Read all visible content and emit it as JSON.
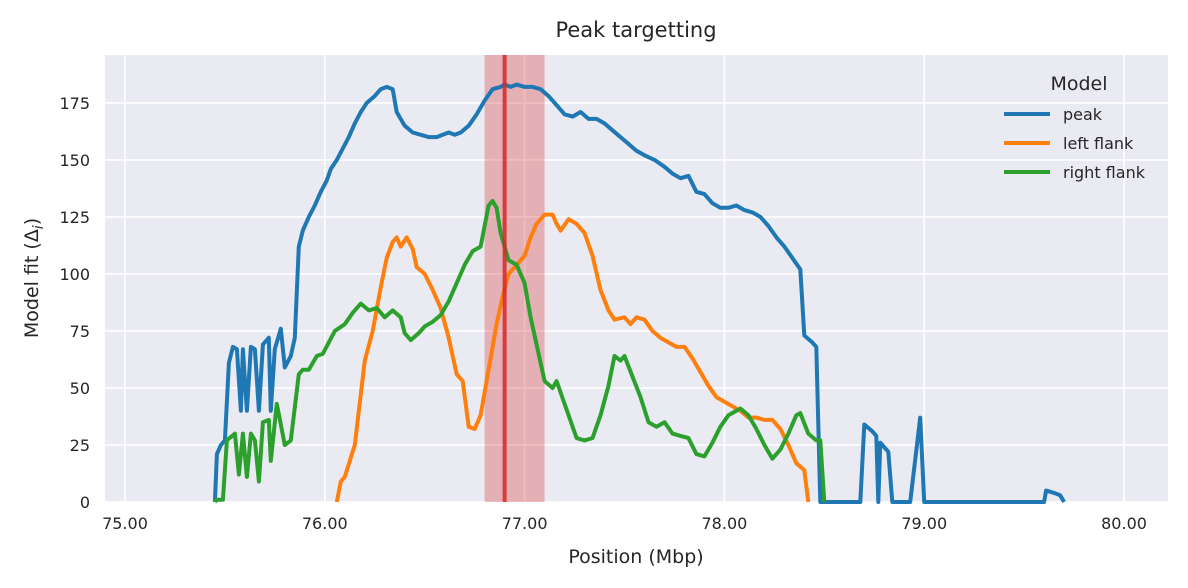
{
  "chart_data": {
    "type": "line",
    "title": "Peak targetting",
    "xlabel": "Position (Mbp)",
    "ylabel": "Model fit (Δ",
    "ylabel_sub": "i",
    "ylabel_close": ")",
    "xlim": [
      74.9,
      80.22
    ],
    "ylim": [
      0,
      196
    ],
    "xticks": [
      75,
      76,
      77,
      78,
      79,
      80
    ],
    "xtick_labels": [
      "75.00",
      "76.00",
      "77.00",
      "78.00",
      "79.00",
      "80.00"
    ],
    "yticks": [
      0,
      25,
      50,
      75,
      100,
      125,
      150,
      175
    ],
    "ytick_labels": [
      "0",
      "25",
      "50",
      "75",
      "100",
      "125",
      "150",
      "175"
    ],
    "grid": true,
    "background": "#eaeaf2",
    "legend": {
      "title": "Model",
      "placement": "top-right"
    },
    "highlight_line": {
      "x": 76.9,
      "color": "#d62728"
    },
    "highlight_band": {
      "x0": 76.8,
      "x1": 77.1,
      "color": "#d62728"
    },
    "series": [
      {
        "name": "peak",
        "color": "#1f77b4",
        "points": [
          [
            75.45,
            0
          ],
          [
            75.46,
            21
          ],
          [
            75.48,
            25
          ],
          [
            75.5,
            27
          ],
          [
            75.52,
            61
          ],
          [
            75.54,
            68
          ],
          [
            75.56,
            67
          ],
          [
            75.58,
            40
          ],
          [
            75.59,
            67
          ],
          [
            75.61,
            40
          ],
          [
            75.63,
            68
          ],
          [
            75.65,
            67
          ],
          [
            75.67,
            40
          ],
          [
            75.69,
            69
          ],
          [
            75.72,
            72
          ],
          [
            75.73,
            40
          ],
          [
            75.75,
            67
          ],
          [
            75.78,
            76
          ],
          [
            75.8,
            59
          ],
          [
            75.83,
            64
          ],
          [
            75.85,
            72
          ],
          [
            75.87,
            112
          ],
          [
            75.89,
            119
          ],
          [
            75.92,
            125
          ],
          [
            75.95,
            130
          ],
          [
            75.98,
            136
          ],
          [
            76.01,
            141
          ],
          [
            76.03,
            146
          ],
          [
            76.06,
            150
          ],
          [
            76.09,
            155
          ],
          [
            76.12,
            160
          ],
          [
            76.15,
            166
          ],
          [
            76.18,
            171
          ],
          [
            76.21,
            175
          ],
          [
            76.25,
            178
          ],
          [
            76.28,
            181
          ],
          [
            76.31,
            182
          ],
          [
            76.34,
            181
          ],
          [
            76.36,
            171
          ],
          [
            76.4,
            165
          ],
          [
            76.44,
            162
          ],
          [
            76.48,
            161
          ],
          [
            76.52,
            160
          ],
          [
            76.56,
            160
          ],
          [
            76.59,
            161
          ],
          [
            76.62,
            162
          ],
          [
            76.65,
            161
          ],
          [
            76.68,
            162
          ],
          [
            76.72,
            165
          ],
          [
            76.76,
            170
          ],
          [
            76.8,
            176
          ],
          [
            76.84,
            181
          ],
          [
            76.88,
            182
          ],
          [
            76.9,
            183
          ],
          [
            76.93,
            182
          ],
          [
            76.96,
            183
          ],
          [
            77.0,
            182
          ],
          [
            77.04,
            182
          ],
          [
            77.08,
            181
          ],
          [
            77.12,
            178
          ],
          [
            77.16,
            174
          ],
          [
            77.2,
            170
          ],
          [
            77.24,
            169
          ],
          [
            77.28,
            171
          ],
          [
            77.32,
            168
          ],
          [
            77.36,
            168
          ],
          [
            77.4,
            166
          ],
          [
            77.44,
            163
          ],
          [
            77.48,
            160
          ],
          [
            77.52,
            157
          ],
          [
            77.56,
            154
          ],
          [
            77.6,
            152
          ],
          [
            77.65,
            150
          ],
          [
            77.7,
            147
          ],
          [
            77.74,
            144
          ],
          [
            77.78,
            142
          ],
          [
            77.82,
            143
          ],
          [
            77.86,
            136
          ],
          [
            77.9,
            135
          ],
          [
            77.94,
            131
          ],
          [
            77.98,
            129
          ],
          [
            78.02,
            129
          ],
          [
            78.06,
            130
          ],
          [
            78.1,
            128
          ],
          [
            78.14,
            127
          ],
          [
            78.18,
            125
          ],
          [
            78.22,
            121
          ],
          [
            78.26,
            116
          ],
          [
            78.3,
            112
          ],
          [
            78.34,
            107
          ],
          [
            78.38,
            102
          ],
          [
            78.4,
            73
          ],
          [
            78.44,
            70
          ],
          [
            78.46,
            68
          ],
          [
            78.48,
            0
          ],
          [
            78.68,
            0
          ],
          [
            78.7,
            34
          ],
          [
            78.74,
            31
          ],
          [
            78.76,
            29
          ],
          [
            78.77,
            0
          ],
          [
            78.78,
            26
          ],
          [
            78.82,
            22
          ],
          [
            78.84,
            0
          ],
          [
            78.93,
            0
          ],
          [
            78.98,
            37
          ],
          [
            79.0,
            0
          ],
          [
            79.6,
            0
          ],
          [
            79.61,
            5
          ],
          [
            79.65,
            4
          ],
          [
            79.68,
            3
          ],
          [
            79.7,
            0
          ]
        ]
      },
      {
        "name": "left flank",
        "color": "#ff7f0e",
        "points": [
          [
            76.06,
            0
          ],
          [
            76.08,
            9
          ],
          [
            76.1,
            11
          ],
          [
            76.15,
            25
          ],
          [
            76.2,
            62
          ],
          [
            76.24,
            75
          ],
          [
            76.28,
            94
          ],
          [
            76.31,
            107
          ],
          [
            76.34,
            114
          ],
          [
            76.36,
            116
          ],
          [
            76.38,
            112
          ],
          [
            76.41,
            116
          ],
          [
            76.44,
            111
          ],
          [
            76.46,
            103
          ],
          [
            76.5,
            100
          ],
          [
            76.54,
            93
          ],
          [
            76.58,
            85
          ],
          [
            76.62,
            72
          ],
          [
            76.66,
            56
          ],
          [
            76.69,
            53
          ],
          [
            76.72,
            33
          ],
          [
            76.75,
            32
          ],
          [
            76.78,
            38
          ],
          [
            76.82,
            58
          ],
          [
            76.86,
            78
          ],
          [
            76.89,
            90
          ],
          [
            76.92,
            100
          ],
          [
            76.96,
            104
          ],
          [
            77.0,
            108
          ],
          [
            77.03,
            116
          ],
          [
            77.06,
            122
          ],
          [
            77.1,
            126
          ],
          [
            77.14,
            126
          ],
          [
            77.16,
            122
          ],
          [
            77.18,
            119
          ],
          [
            77.22,
            124
          ],
          [
            77.26,
            122
          ],
          [
            77.3,
            118
          ],
          [
            77.34,
            108
          ],
          [
            77.38,
            93
          ],
          [
            77.42,
            84
          ],
          [
            77.45,
            80
          ],
          [
            77.5,
            81
          ],
          [
            77.53,
            78
          ],
          [
            77.56,
            81
          ],
          [
            77.6,
            80
          ],
          [
            77.64,
            75
          ],
          [
            77.68,
            72
          ],
          [
            77.72,
            70
          ],
          [
            77.76,
            68
          ],
          [
            77.8,
            68
          ],
          [
            77.84,
            63
          ],
          [
            77.88,
            57
          ],
          [
            77.92,
            51
          ],
          [
            77.96,
            46
          ],
          [
            78.0,
            44
          ],
          [
            78.04,
            42
          ],
          [
            78.08,
            40
          ],
          [
            78.12,
            37
          ],
          [
            78.16,
            37
          ],
          [
            78.2,
            36
          ],
          [
            78.24,
            36
          ],
          [
            78.28,
            32
          ],
          [
            78.32,
            25
          ],
          [
            78.36,
            17
          ],
          [
            78.4,
            14
          ],
          [
            78.42,
            0
          ]
        ]
      },
      {
        "name": "right flank",
        "color": "#2ca02c",
        "points": [
          [
            75.45,
            0
          ],
          [
            75.46,
            1
          ],
          [
            75.49,
            1
          ],
          [
            75.51,
            27
          ],
          [
            75.55,
            30
          ],
          [
            75.57,
            12
          ],
          [
            75.59,
            30
          ],
          [
            75.61,
            11
          ],
          [
            75.63,
            30
          ],
          [
            75.65,
            27
          ],
          [
            75.67,
            9
          ],
          [
            75.69,
            35
          ],
          [
            75.72,
            36
          ],
          [
            75.73,
            18
          ],
          [
            75.76,
            43
          ],
          [
            75.8,
            25
          ],
          [
            75.83,
            27
          ],
          [
            75.87,
            56
          ],
          [
            75.89,
            58
          ],
          [
            75.92,
            58
          ],
          [
            75.96,
            64
          ],
          [
            75.99,
            65
          ],
          [
            76.02,
            70
          ],
          [
            76.05,
            75
          ],
          [
            76.1,
            78
          ],
          [
            76.14,
            83
          ],
          [
            76.18,
            87
          ],
          [
            76.22,
            84
          ],
          [
            76.26,
            85
          ],
          [
            76.3,
            81
          ],
          [
            76.34,
            84
          ],
          [
            76.38,
            81
          ],
          [
            76.4,
            74
          ],
          [
            76.43,
            71
          ],
          [
            76.47,
            74
          ],
          [
            76.5,
            77
          ],
          [
            76.54,
            79
          ],
          [
            76.58,
            82
          ],
          [
            76.62,
            88
          ],
          [
            76.66,
            96
          ],
          [
            76.7,
            104
          ],
          [
            76.74,
            110
          ],
          [
            76.78,
            112
          ],
          [
            76.82,
            130
          ],
          [
            76.84,
            132
          ],
          [
            76.86,
            129
          ],
          [
            76.88,
            118
          ],
          [
            76.92,
            106
          ],
          [
            76.96,
            104
          ],
          [
            77.0,
            96
          ],
          [
            77.03,
            81
          ],
          [
            77.07,
            65
          ],
          [
            77.1,
            53
          ],
          [
            77.14,
            50
          ],
          [
            77.16,
            53
          ],
          [
            77.18,
            48
          ],
          [
            77.22,
            38
          ],
          [
            77.26,
            28
          ],
          [
            77.3,
            27
          ],
          [
            77.34,
            28
          ],
          [
            77.38,
            38
          ],
          [
            77.42,
            51
          ],
          [
            77.45,
            64
          ],
          [
            77.48,
            62
          ],
          [
            77.5,
            64
          ],
          [
            77.54,
            55
          ],
          [
            77.58,
            46
          ],
          [
            77.62,
            35
          ],
          [
            77.66,
            33
          ],
          [
            77.7,
            35
          ],
          [
            77.74,
            30
          ],
          [
            77.78,
            29
          ],
          [
            77.82,
            28
          ],
          [
            77.86,
            21
          ],
          [
            77.9,
            20
          ],
          [
            77.94,
            26
          ],
          [
            77.98,
            33
          ],
          [
            78.02,
            38
          ],
          [
            78.06,
            40
          ],
          [
            78.08,
            41
          ],
          [
            78.12,
            38
          ],
          [
            78.16,
            32
          ],
          [
            78.2,
            25
          ],
          [
            78.24,
            19
          ],
          [
            78.28,
            23
          ],
          [
            78.32,
            30
          ],
          [
            78.36,
            38
          ],
          [
            78.38,
            39
          ],
          [
            78.42,
            30
          ],
          [
            78.46,
            27
          ],
          [
            78.48,
            27
          ],
          [
            78.5,
            0
          ]
        ]
      }
    ]
  }
}
